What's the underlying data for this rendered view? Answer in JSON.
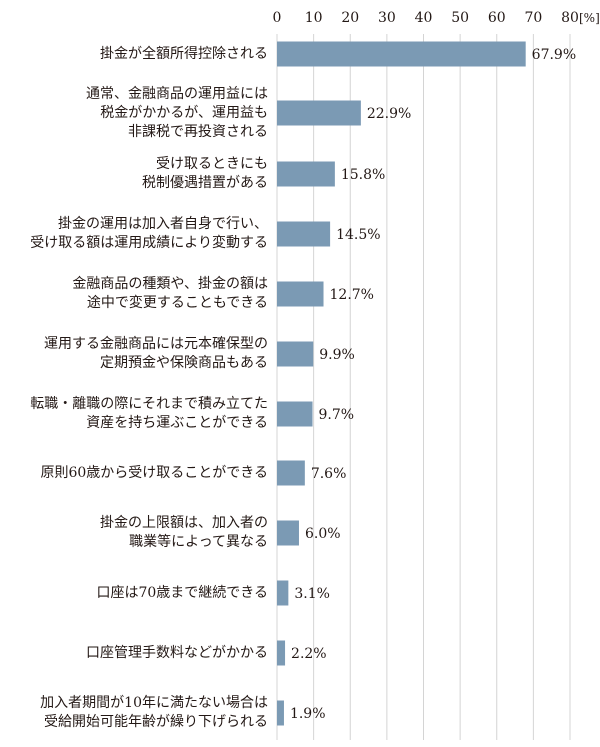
{
  "chart_data": {
    "type": "bar",
    "orientation": "horizontal",
    "unit_label": "[%]",
    "xlim": [
      0,
      80
    ],
    "xticks": [
      0,
      10,
      20,
      30,
      40,
      50,
      60,
      70,
      80
    ],
    "grid": true,
    "bar_color": "#7b9ab4",
    "categories": [
      "掛金が全額所得控除される",
      "通常、金融商品の運用益には\n税金がかかるが、運用益も\n非課税で再投資される",
      "受け取るときにも\n税制優遇措置がある",
      "掛金の運用は加入者自身で行い、\n受け取る額は運用成績により変動する",
      "金融商品の種類や、掛金の額は\n途中で変更することもできる",
      "運用する金融商品には元本確保型の\n定期預金や保険商品もある",
      "転職・離職の際にそれまで積み立てた\n資産を持ち運ぶことができる",
      "原則60歳から受け取ることができる",
      "掛金の上限額は、加入者の\n職業等によって異なる",
      "口座は70歳まで継続できる",
      "口座管理手数料などがかかる",
      "加入者期間が10年に満たない場合は\n受給開始可能年齢が繰り下げられる"
    ],
    "values": [
      67.9,
      22.9,
      15.8,
      14.5,
      12.7,
      9.9,
      9.7,
      7.6,
      6.0,
      3.1,
      2.2,
      1.9
    ],
    "value_labels": [
      "67.9%",
      "22.9%",
      "15.8%",
      "14.5%",
      "12.7%",
      "9.9%",
      "9.7%",
      "7.6%",
      "6.0%",
      "3.1%",
      "2.2%",
      "1.9%"
    ]
  }
}
